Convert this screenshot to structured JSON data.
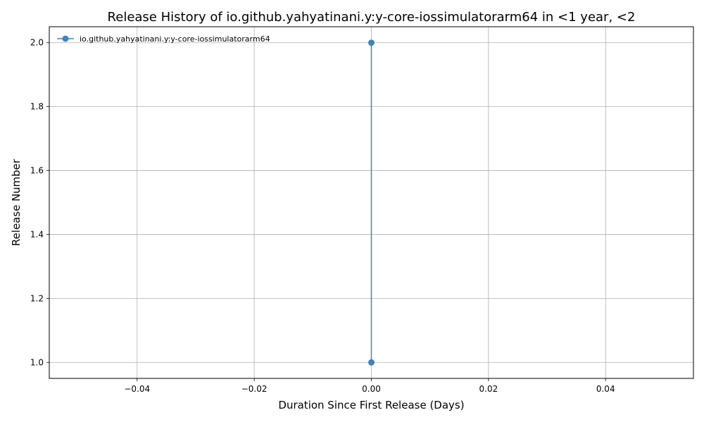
{
  "chart_data": {
    "type": "line",
    "title": "Release History of io.github.yahyatinani.y:y-core-iossimulatorarm64 in <1 year, <2",
    "xlabel": "Duration Since First Release (Days)",
    "ylabel": "Release Number",
    "xlim": [
      -0.055,
      0.055
    ],
    "ylim": [
      0.95,
      2.05
    ],
    "xticks": [
      -0.04,
      -0.02,
      0.0,
      0.02,
      0.04
    ],
    "xtick_labels": [
      "−0.04",
      "−0.02",
      "0.00",
      "0.02",
      "0.04"
    ],
    "yticks": [
      1.0,
      1.2,
      1.4,
      1.6,
      1.8,
      2.0
    ],
    "ytick_labels": [
      "1.0",
      "1.2",
      "1.4",
      "1.6",
      "1.8",
      "2.0"
    ],
    "grid": true,
    "legend_position": "upper-left",
    "series": [
      {
        "name": "io.github.yahyatinani.y:y-core-iossimulatorarm64",
        "color": "#3d85bd",
        "marker": "circle",
        "x": [
          0.0,
          0.0
        ],
        "y": [
          1,
          2
        ]
      }
    ]
  }
}
